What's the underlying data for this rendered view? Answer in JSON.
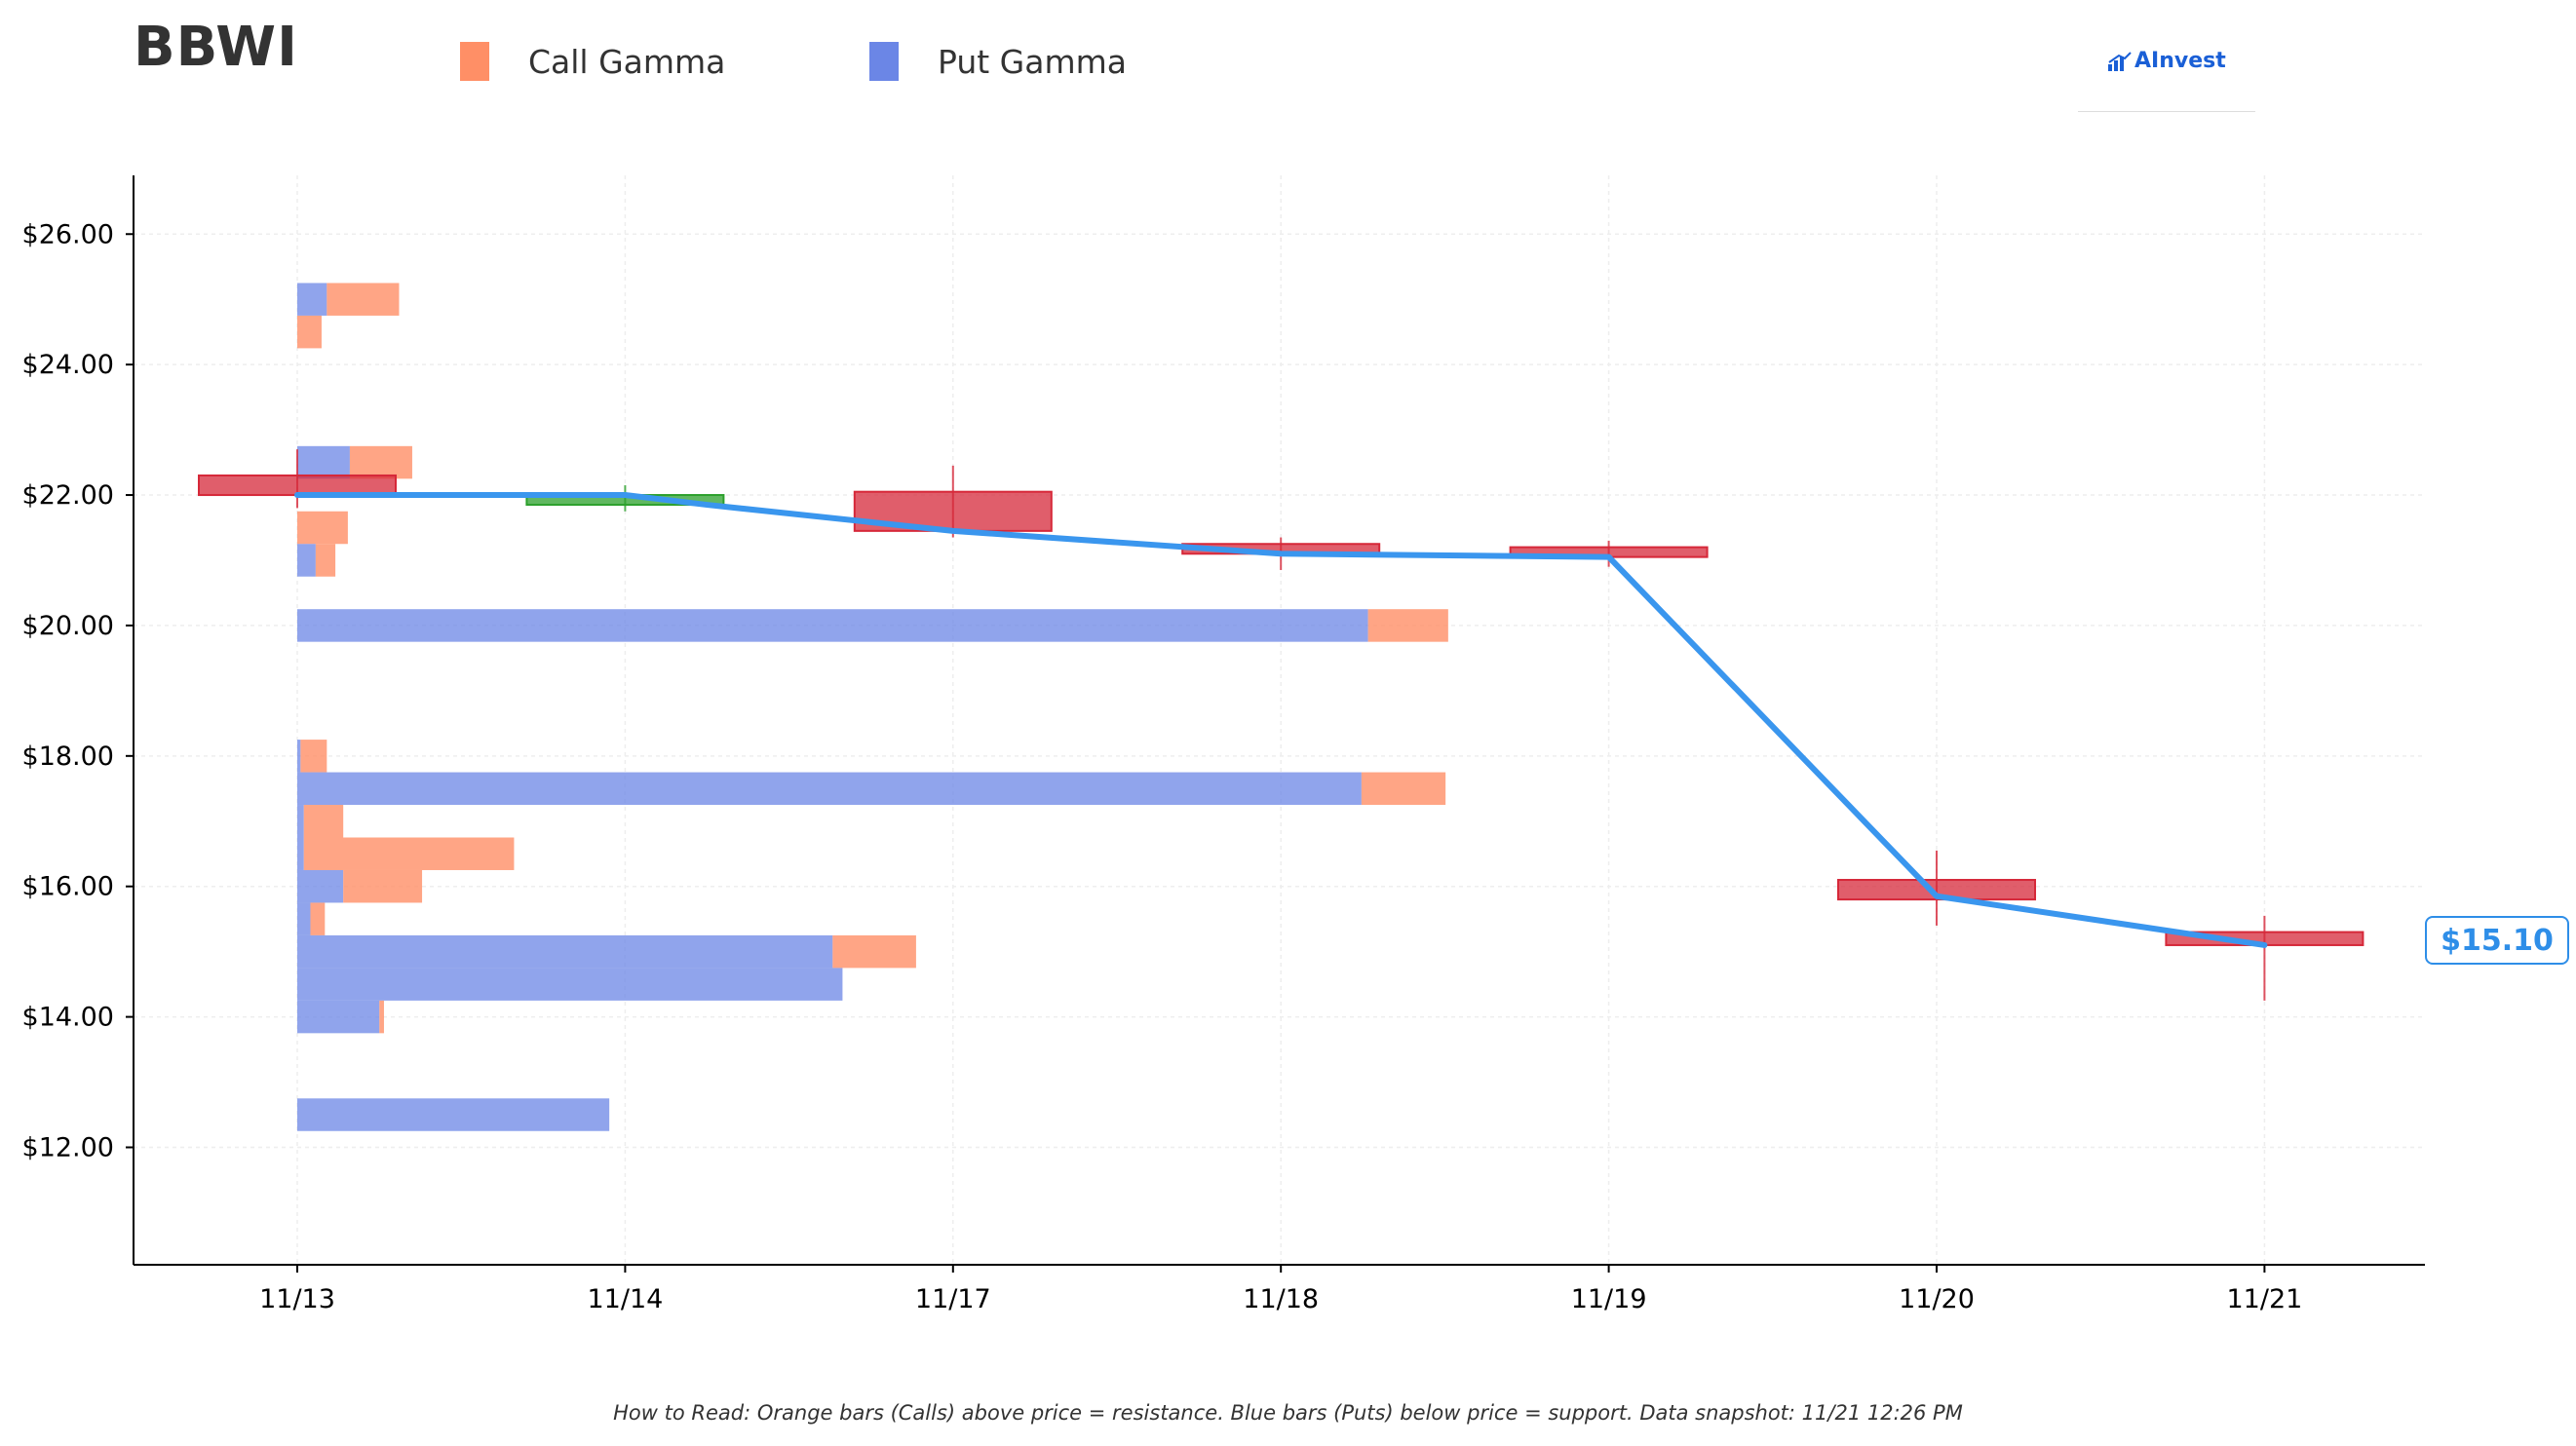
{
  "header": {
    "ticker": "BBWI",
    "brand": "AInvest"
  },
  "legend": {
    "call_label": "Call Gamma",
    "put_label": "Put Gamma",
    "call_color": "#ff8f66",
    "put_color": "#6b86e6"
  },
  "footnote": "How to Read: Orange bars (Calls) above price = resistance. Blue bars (Puts) below price = support. Data snapshot: 11/21 12:26 PM",
  "price_badge": "$15.10",
  "chart_data": {
    "type": "candlestick",
    "ylim": [
      10.2,
      26.9
    ],
    "y_ticks": [
      12,
      14,
      16,
      18,
      20,
      22,
      24,
      26
    ],
    "y_tick_labels": [
      "$12.00",
      "$14.00",
      "$16.00",
      "$18.00",
      "$20.00",
      "$22.00",
      "$24.00",
      "$26.00"
    ],
    "categories": [
      "11/13",
      "11/14",
      "11/17",
      "11/18",
      "11/19",
      "11/20",
      "11/21"
    ],
    "grid": true,
    "candles": [
      {
        "date": "11/13",
        "open": 22.3,
        "close": 22.0,
        "high": 22.7,
        "low": 21.8,
        "direction": "down"
      },
      {
        "date": "11/14",
        "open": 21.85,
        "close": 22.0,
        "high": 22.15,
        "low": 21.75,
        "direction": "up"
      },
      {
        "date": "11/17",
        "open": 22.05,
        "close": 21.45,
        "high": 22.45,
        "low": 21.35,
        "direction": "down"
      },
      {
        "date": "11/18",
        "open": 21.25,
        "close": 21.1,
        "high": 21.35,
        "low": 20.85,
        "direction": "down"
      },
      {
        "date": "11/19",
        "open": 21.2,
        "close": 21.05,
        "high": 21.3,
        "low": 20.9,
        "direction": "down"
      },
      {
        "date": "11/20",
        "open": 16.1,
        "close": 15.8,
        "high": 16.55,
        "low": 15.4,
        "direction": "down"
      },
      {
        "date": "11/21",
        "open": 15.3,
        "close": 15.1,
        "high": 15.55,
        "low": 14.25,
        "direction": "down"
      }
    ],
    "close_line": {
      "x": [
        "11/13",
        "11/14",
        "11/14",
        "11/17",
        "11/18",
        "11/19",
        "11/20",
        "11/21"
      ],
      "x_offsets": [
        0,
        0,
        0.25,
        0,
        0,
        0,
        0,
        0
      ],
      "y": [
        22.0,
        22.0,
        21.85,
        21.45,
        21.1,
        21.05,
        15.85,
        15.1
      ],
      "color": "#3a96ee"
    },
    "gamma_bars": {
      "strike_step": 0.5,
      "levels": [
        {
          "strike": 25.0,
          "put": 0.45,
          "call": 1.1
        },
        {
          "strike": 24.5,
          "put": 0.0,
          "call": 0.37
        },
        {
          "strike": 22.5,
          "put": 0.8,
          "call": 0.95
        },
        {
          "strike": 21.5,
          "put": 0.0,
          "call": 0.77
        },
        {
          "strike": 21.0,
          "put": 0.28,
          "call": 0.3
        },
        {
          "strike": 20.0,
          "put": 16.3,
          "call": 1.22
        },
        {
          "strike": 18.0,
          "put": 0.05,
          "call": 0.4
        },
        {
          "strike": 17.5,
          "put": 16.2,
          "call": 1.28
        },
        {
          "strike": 17.0,
          "put": 0.1,
          "call": 0.6
        },
        {
          "strike": 16.5,
          "put": 0.1,
          "call": 3.2
        },
        {
          "strike": 16.0,
          "put": 0.7,
          "call": 1.2
        },
        {
          "strike": 15.5,
          "put": 0.2,
          "call": 0.22
        },
        {
          "strike": 15.0,
          "put": 8.15,
          "call": 1.27
        },
        {
          "strike": 14.5,
          "put": 8.3,
          "call": 0.0
        },
        {
          "strike": 14.0,
          "put": 1.25,
          "call": 0.07
        },
        {
          "strike": 12.5,
          "put": 4.75,
          "call": 0.0
        }
      ]
    }
  }
}
